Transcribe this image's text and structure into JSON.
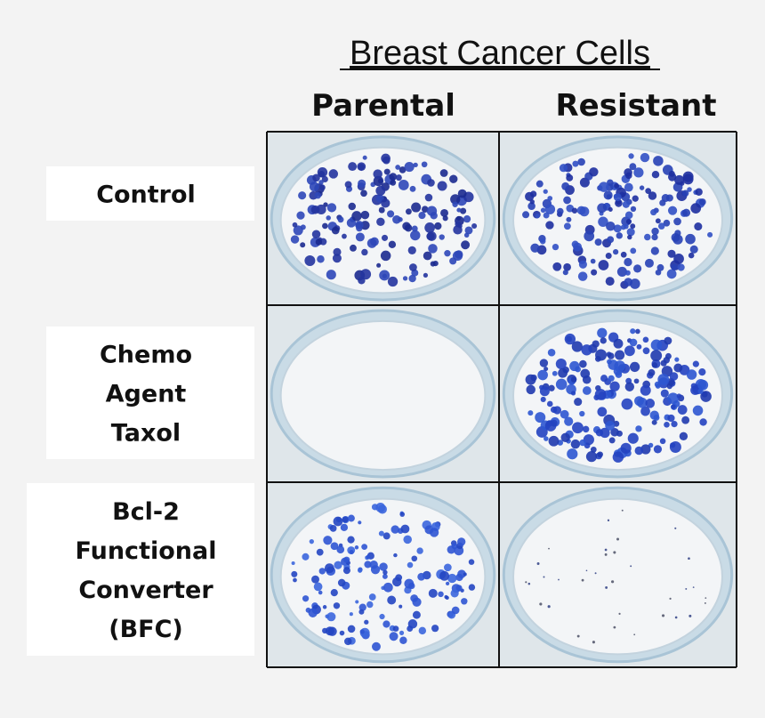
{
  "title": "Breast Cancer Cells",
  "columns": [
    "Parental",
    "Resistant"
  ],
  "rows": [
    {
      "label": [
        "Control"
      ]
    },
    {
      "label": [
        "Chemo",
        "Agent",
        "Taxol"
      ]
    },
    {
      "label": [
        "Bcl-2",
        "Functional",
        "Converter",
        "(BFC)"
      ]
    }
  ]
}
